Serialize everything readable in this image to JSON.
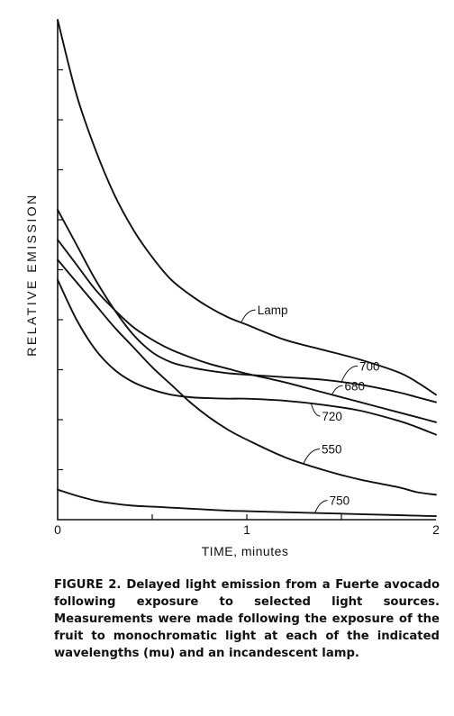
{
  "chart_data": {
    "type": "line",
    "xlabel": "TIME, minutes",
    "ylabel": "RELATIVE EMISSION",
    "xlim": [
      0,
      2
    ],
    "ylim": [
      0,
      100
    ],
    "x_ticks": [
      "0",
      "1",
      "2"
    ],
    "series": [
      {
        "name": "Lamp",
        "x": [
          0,
          0.1,
          0.2,
          0.3,
          0.4,
          0.5,
          0.6,
          0.7,
          0.8,
          0.9,
          1.0,
          1.2,
          1.4,
          1.6,
          1.8,
          1.9,
          2.0
        ],
        "y": [
          100,
          85,
          74,
          65,
          58,
          52.5,
          48,
          45,
          42.5,
          40.5,
          39,
          36,
          34,
          32,
          29.5,
          27.5,
          25
        ]
      },
      {
        "name": "700",
        "x": [
          0,
          0.1,
          0.2,
          0.3,
          0.4,
          0.5,
          0.6,
          0.7,
          0.8,
          0.9,
          1.0,
          1.2,
          1.4,
          1.6,
          1.8,
          1.9,
          2.0
        ],
        "y": [
          62,
          55,
          48,
          42,
          37,
          33.5,
          31.5,
          30.5,
          29.8,
          29.3,
          29,
          28.5,
          28,
          27,
          25.5,
          24.5,
          23.5
        ]
      },
      {
        "name": "680",
        "x": [
          0,
          0.1,
          0.2,
          0.3,
          0.4,
          0.5,
          0.6,
          0.7,
          0.8,
          0.9,
          1.0,
          1.2,
          1.4,
          1.6,
          1.8,
          1.9,
          2.0
        ],
        "y": [
          56,
          51,
          46,
          42,
          38.5,
          36,
          34,
          32.5,
          31.2,
          30.2,
          29.2,
          27.5,
          25.5,
          23.5,
          21.5,
          20.5,
          19.5
        ]
      },
      {
        "name": "720",
        "x": [
          0,
          0.1,
          0.2,
          0.3,
          0.4,
          0.5,
          0.6,
          0.7,
          0.8,
          0.9,
          1.0,
          1.2,
          1.4,
          1.6,
          1.8,
          1.9,
          2.0
        ],
        "y": [
          48,
          40,
          34,
          30,
          27.5,
          26,
          25,
          24.5,
          24.3,
          24.2,
          24.2,
          23.8,
          23,
          21.8,
          19.8,
          18.5,
          17
        ]
      },
      {
        "name": "550",
        "x": [
          0,
          0.1,
          0.2,
          0.3,
          0.4,
          0.5,
          0.6,
          0.7,
          0.8,
          0.9,
          1.0,
          1.2,
          1.4,
          1.6,
          1.8,
          1.9,
          2.0
        ],
        "y": [
          52,
          47.5,
          43,
          38.5,
          34.5,
          30.5,
          27,
          23.5,
          20.5,
          18,
          16,
          12.5,
          10,
          8,
          6.5,
          5.5,
          5
        ]
      },
      {
        "name": "750",
        "x": [
          0,
          0.1,
          0.2,
          0.3,
          0.4,
          0.5,
          0.6,
          0.7,
          0.8,
          0.9,
          1.0,
          1.2,
          1.4,
          1.6,
          1.8,
          1.9,
          2.0
        ],
        "y": [
          6,
          4.8,
          3.8,
          3.2,
          2.8,
          2.6,
          2.4,
          2.2,
          2.0,
          1.8,
          1.7,
          1.5,
          1.3,
          1.1,
          0.9,
          0.8,
          0.7
        ]
      }
    ]
  },
  "caption": {
    "label": "FIGURE 2.",
    "text": "Delayed light emission from a Fuerte avocado following exposure to selected light sources. Measurements were made following the exposure of the fruit to monochromatic light at each of the indicated wavelengths (mu) and an incandescent lamp."
  }
}
